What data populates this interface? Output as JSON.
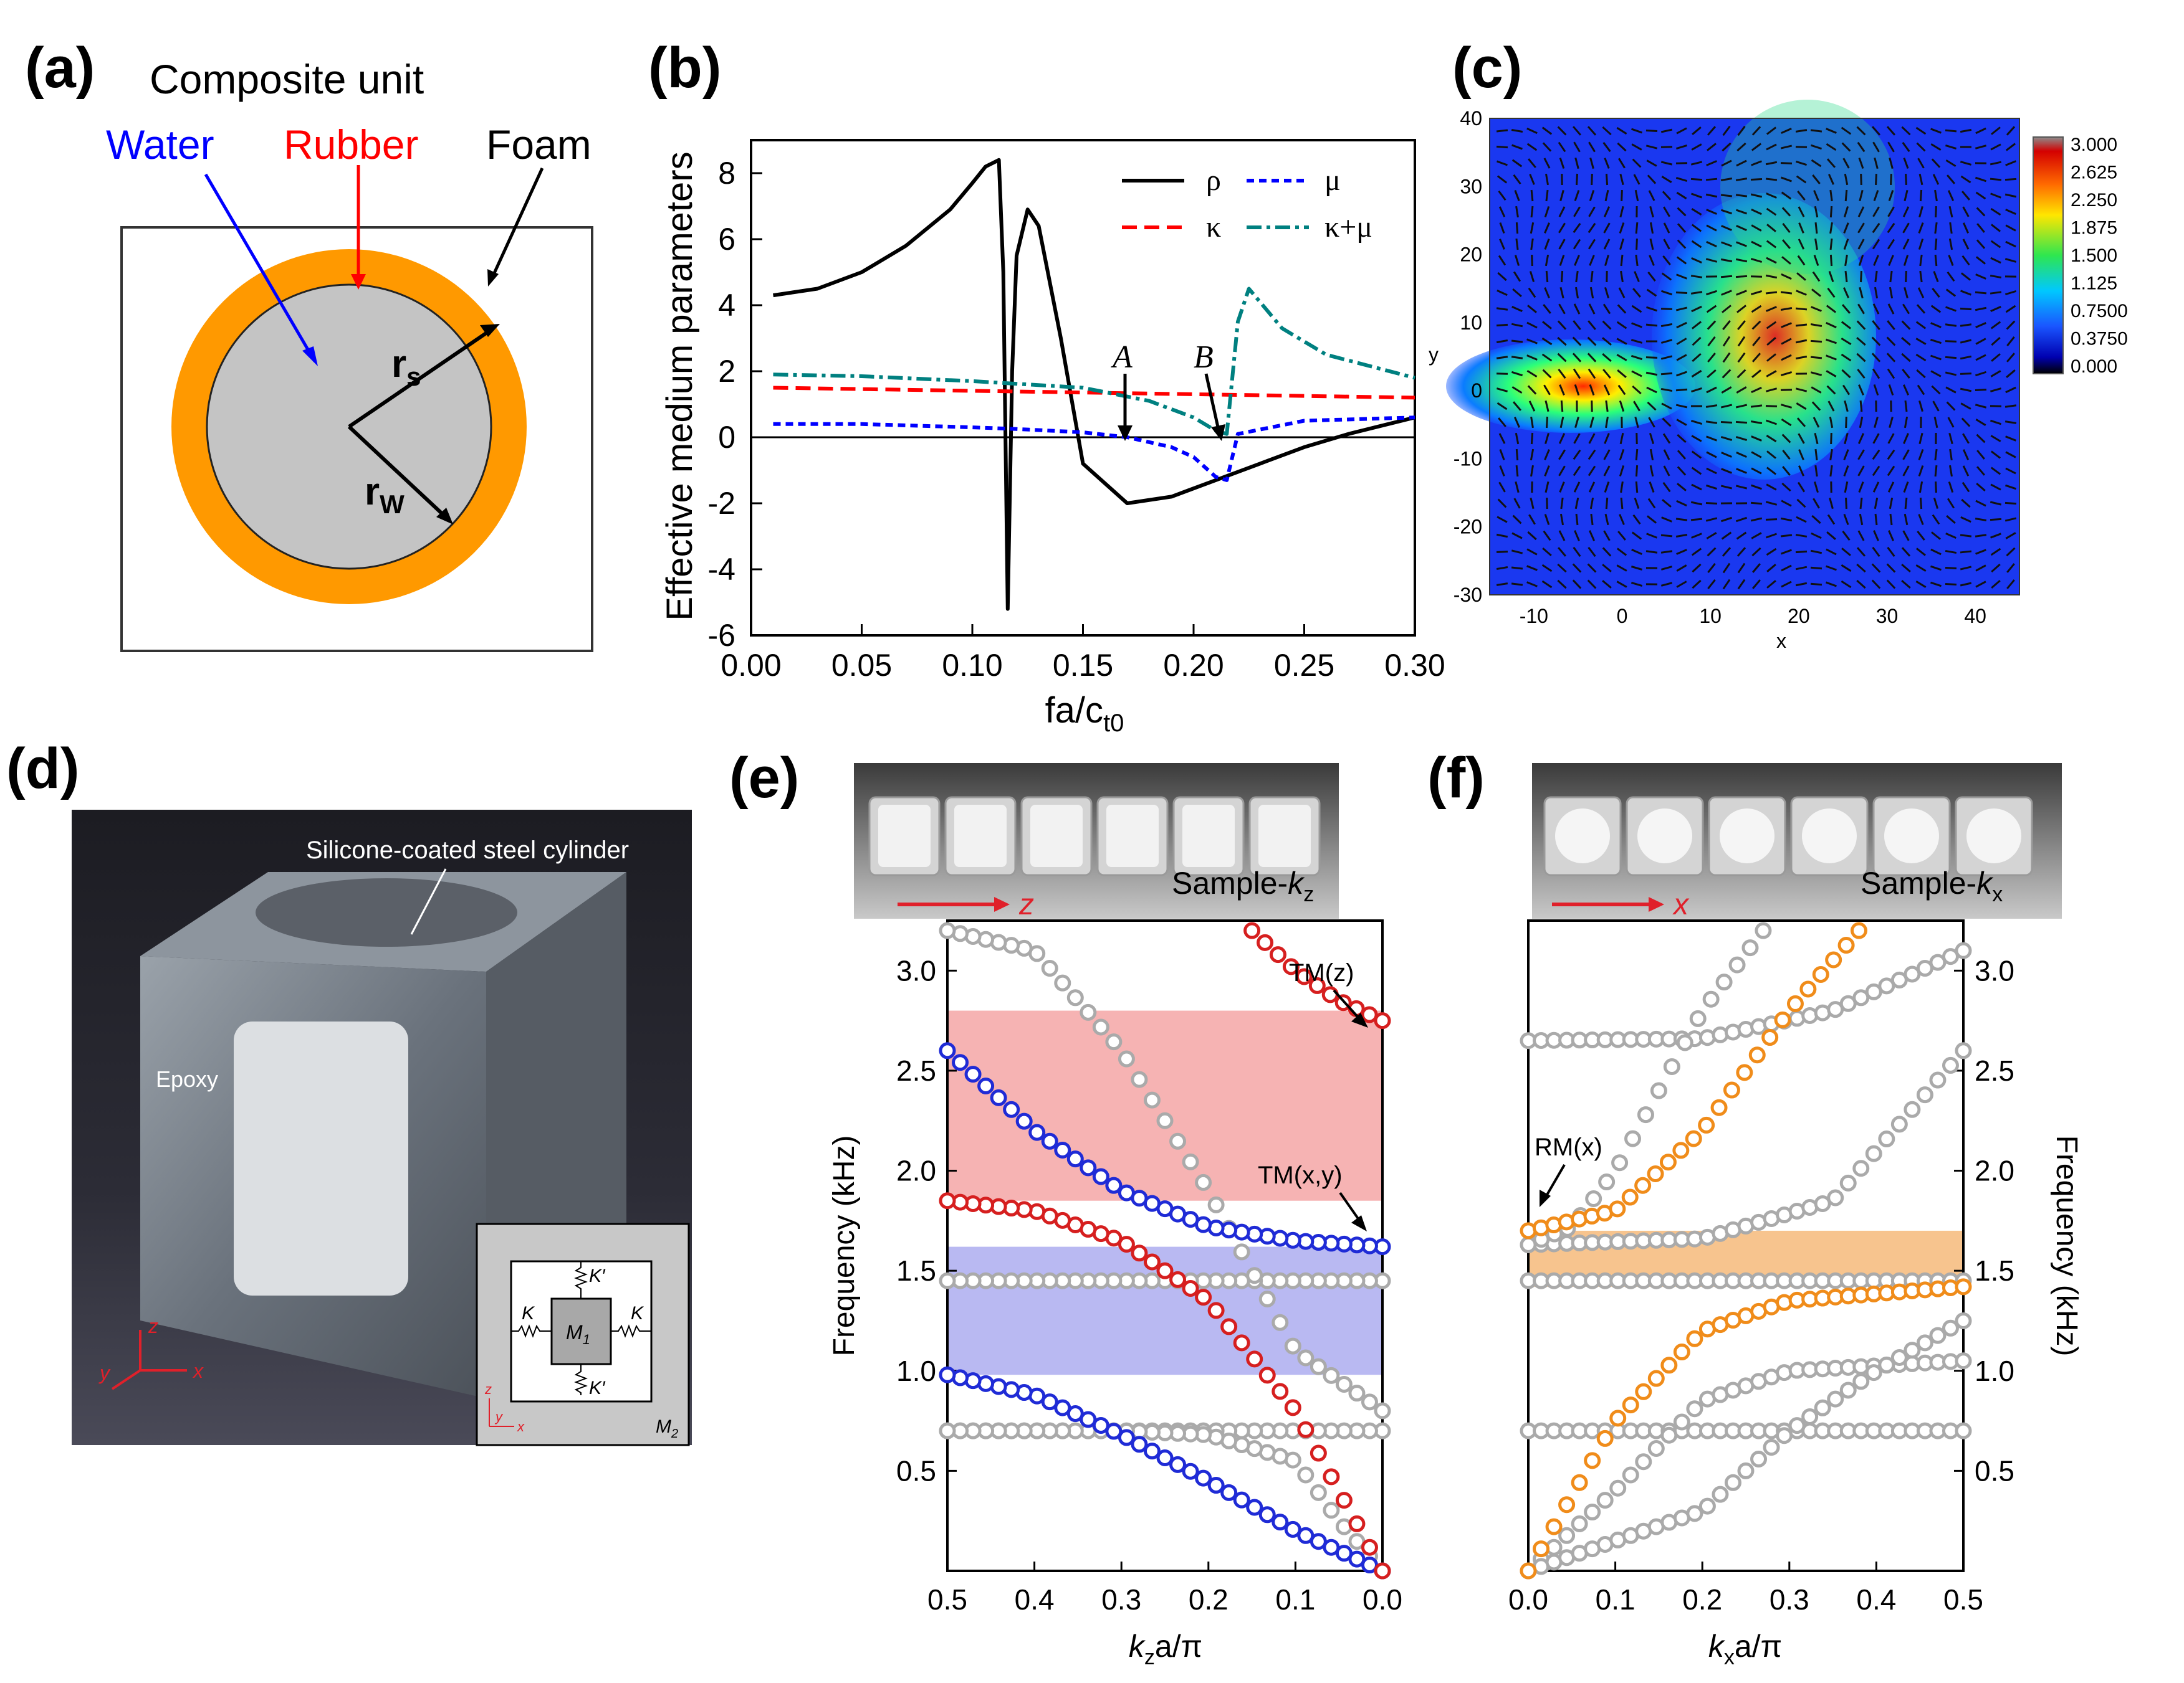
{
  "panel_labels": {
    "a": "(a)",
    "b": "(b)",
    "c": "(c)",
    "d": "(d)",
    "e": "(e)",
    "f": "(f)"
  },
  "panel_a": {
    "title": "Composite unit",
    "label_water": "Water",
    "label_rubber": "Rubber",
    "label_foam": "Foam",
    "label_rs": "r",
    "label_rs_sub": "s",
    "label_rw": "r",
    "label_rw_sub": "W",
    "colors": {
      "water": "#0000ff",
      "rubber": "#ff0000",
      "shell": "#ff9900",
      "core": "#c4c4c4"
    }
  },
  "panel_b": {
    "chart_data": {
      "type": "line",
      "xlabel": "fa/c",
      "xlabel_sub": "t0",
      "ylabel": "Effective medium parameters",
      "xlim": [
        0,
        0.3
      ],
      "ylim": [
        -6,
        9
      ],
      "xticks": [
        "0.00",
        "0.05",
        "0.10",
        "0.15",
        "0.20",
        "0.25",
        "0.30"
      ],
      "yticks": [
        "-6",
        "-4",
        "-2",
        "0",
        "2",
        "4",
        "6",
        "8"
      ],
      "legend": [
        {
          "name": "ρ",
          "style": "solid",
          "color": "#000000"
        },
        {
          "name": "μ",
          "style": "dotted",
          "color": "#0000ff"
        },
        {
          "name": "κ",
          "style": "dashed",
          "color": "#ff0000"
        },
        {
          "name": "κ+μ",
          "style": "dashdot",
          "color": "#008080"
        }
      ],
      "annotations": [
        "A",
        "B"
      ],
      "series": [
        {
          "name": "ρ",
          "x": [
            0.01,
            0.03,
            0.05,
            0.07,
            0.09,
            0.1,
            0.106,
            0.112,
            0.114,
            0.116,
            0.118,
            0.12,
            0.125,
            0.13,
            0.14,
            0.15,
            0.17,
            0.19,
            0.21,
            0.23,
            0.25,
            0.27,
            0.3
          ],
          "y": [
            4.3,
            4.5,
            5.0,
            5.8,
            6.9,
            7.7,
            8.2,
            8.4,
            5.0,
            -5.2,
            2.0,
            5.5,
            6.9,
            6.4,
            3.0,
            -0.8,
            -2.0,
            -1.8,
            -1.3,
            -0.8,
            -0.3,
            0.1,
            0.6
          ]
        },
        {
          "name": "μ",
          "x": [
            0.01,
            0.05,
            0.1,
            0.12,
            0.15,
            0.17,
            0.19,
            0.2,
            0.21,
            0.215,
            0.22,
            0.25,
            0.3
          ],
          "y": [
            0.4,
            0.4,
            0.3,
            0.25,
            0.15,
            0.0,
            -0.3,
            -0.6,
            -1.2,
            -1.3,
            0.1,
            0.5,
            0.6
          ]
        },
        {
          "name": "κ",
          "x": [
            0.01,
            0.3
          ],
          "y": [
            1.5,
            1.2
          ]
        },
        {
          "name": "κ+μ",
          "x": [
            0.01,
            0.05,
            0.1,
            0.15,
            0.18,
            0.2,
            0.21,
            0.215,
            0.22,
            0.225,
            0.24,
            0.26,
            0.3
          ],
          "y": [
            1.9,
            1.85,
            1.7,
            1.5,
            1.1,
            0.6,
            0.2,
            0.1,
            3.5,
            4.5,
            3.3,
            2.5,
            1.8
          ]
        }
      ]
    }
  },
  "panel_c": {
    "xlabel": "x",
    "ylabel": "y",
    "xticks": [
      "-10",
      "0",
      "10",
      "20",
      "30",
      "40"
    ],
    "yticks": [
      "40",
      "30",
      "20",
      "10",
      "0",
      "-10",
      "-20",
      "-30"
    ],
    "colorbar": [
      "3.000",
      "2.625",
      "2.250",
      "1.875",
      "1.500",
      "1.125",
      "0.7500",
      "0.3750",
      "0.000"
    ]
  },
  "panel_d": {
    "label_cylinder": "Silicone-coated steel cylinder",
    "label_epoxy": "Epoxy",
    "axes": {
      "z": "z",
      "y": "y",
      "x": "x"
    },
    "inset": {
      "K": "K",
      "Kp": "K′",
      "M1": "M",
      "M1_sub": "1",
      "M2": "M",
      "M2_sub": "2",
      "z": "z",
      "y": "y",
      "x": "x"
    }
  },
  "panel_e": {
    "photo_label": "Sample-",
    "photo_label_k": "k",
    "photo_label_sub": "z",
    "photo_axis": "z",
    "ylabel": "Frequency (kHz)",
    "xlabel": "k",
    "xlabel_sub": "z",
    "xlabel_rest": "a/π",
    "xticks": [
      "0.5",
      "0.4",
      "0.3",
      "0.2",
      "0.1",
      "0.0"
    ],
    "yticks": [
      "3.0",
      "2.5",
      "2.0",
      "1.5",
      "1.0",
      "0.5"
    ],
    "annot_tmz": "TM(z)",
    "annot_tmxy": "TM(x,y)",
    "bands": [
      {
        "from": 1.85,
        "to": 2.8,
        "color": "#f6b3b3"
      },
      {
        "from": 0.98,
        "to": 1.62,
        "color": "#b9b9f2"
      }
    ],
    "chart_data": {
      "type": "scatter",
      "xlim": [
        0.5,
        0.0
      ],
      "ylim": [
        0,
        3.25
      ],
      "series": [
        {
          "name": "gray-flat-0.70",
          "color": "#aaaaaa",
          "x": [
            0.5,
            0.0
          ],
          "y": [
            0.7,
            0.7
          ]
        },
        {
          "name": "gray-flat-1.45",
          "color": "#aaaaaa",
          "x": [
            0.5,
            0.0
          ],
          "y": [
            1.45,
            1.45
          ]
        },
        {
          "name": "gray-upper",
          "color": "#aaaaaa",
          "x": [
            0.5,
            0.4,
            0.3,
            0.2,
            0.1,
            0.0
          ],
          "y": [
            3.2,
            3.1,
            2.6,
            1.9,
            1.1,
            0.8
          ]
        },
        {
          "name": "gray-lower",
          "color": "#aaaaaa",
          "x": [
            0.5,
            0.3,
            0.2,
            0.1,
            0.05,
            0.0
          ],
          "y": [
            0.7,
            0.7,
            0.68,
            0.55,
            0.25,
            0.0
          ]
        },
        {
          "name": "blue-upper",
          "color": "#1f2bd6",
          "x": [
            0.5,
            0.4,
            0.3,
            0.2,
            0.1,
            0.0
          ],
          "y": [
            2.6,
            2.2,
            1.9,
            1.72,
            1.65,
            1.62
          ]
        },
        {
          "name": "blue-lower",
          "color": "#1f2bd6",
          "x": [
            0.5,
            0.4,
            0.3,
            0.2,
            0.1,
            0.0
          ],
          "y": [
            0.98,
            0.88,
            0.68,
            0.45,
            0.2,
            0.0
          ]
        },
        {
          "name": "red-mid",
          "color": "#d61f1f",
          "x": [
            0.5,
            0.4,
            0.3,
            0.2,
            0.1,
            0.0
          ],
          "y": [
            1.85,
            1.8,
            1.65,
            1.35,
            0.8,
            0.0
          ]
        },
        {
          "name": "red-top",
          "color": "#d61f1f",
          "x": [
            0.15,
            0.1,
            0.05,
            0.0
          ],
          "y": [
            3.2,
            3.0,
            2.85,
            2.75
          ]
        }
      ]
    }
  },
  "panel_f": {
    "photo_label": "Sample-",
    "photo_label_k": "k",
    "photo_label_sub": "x",
    "photo_axis": "x",
    "ylabel": "Frequency (kHz)",
    "xlabel": "k",
    "xlabel_sub": "x",
    "xlabel_rest": "a/π",
    "xticks": [
      "0.0",
      "0.1",
      "0.2",
      "0.3",
      "0.4",
      "0.5"
    ],
    "yticks": [
      "3.0",
      "2.5",
      "2.0",
      "1.5",
      "1.0",
      "0.5"
    ],
    "annot_rmx": "RM(x)",
    "bands": [
      {
        "from": 1.42,
        "to": 1.7,
        "color": "#f7c48e"
      }
    ],
    "chart_data": {
      "type": "scatter",
      "xlim": [
        0,
        0.5
      ],
      "ylim": [
        0,
        3.25
      ],
      "series": [
        {
          "name": "gray-flat-0.70",
          "color": "#aaaaaa",
          "x": [
            0,
            0.5
          ],
          "y": [
            0.7,
            0.7
          ]
        },
        {
          "name": "gray-flat-1.45",
          "color": "#aaaaaa",
          "x": [
            0,
            0.5
          ],
          "y": [
            1.45,
            1.45
          ]
        },
        {
          "name": "gray-2.65",
          "color": "#aaaaaa",
          "x": [
            0,
            0.2,
            0.35,
            0.5
          ],
          "y": [
            2.65,
            2.66,
            2.8,
            3.1
          ]
        },
        {
          "name": "gray-1.63",
          "color": "#aaaaaa",
          "x": [
            0,
            0.2,
            0.35,
            0.5
          ],
          "y": [
            1.63,
            1.66,
            1.85,
            2.6
          ]
        },
        {
          "name": "gray-steep",
          "color": "#aaaaaa",
          "x": [
            0,
            0.05,
            0.1,
            0.15,
            0.2,
            0.27
          ],
          "y": [
            1.63,
            1.72,
            2.0,
            2.4,
            2.8,
            3.2
          ]
        },
        {
          "name": "gray-1.0",
          "color": "#aaaaaa",
          "x": [
            0,
            0.1,
            0.2,
            0.3,
            0.5
          ],
          "y": [
            0.0,
            0.4,
            0.85,
            1.0,
            1.05
          ]
        },
        {
          "name": "gray-low",
          "color": "#aaaaaa",
          "x": [
            0,
            0.2,
            0.3,
            0.4,
            0.5
          ],
          "y": [
            0.0,
            0.3,
            0.7,
            1.0,
            1.25
          ]
        },
        {
          "name": "orange-low",
          "color": "#f08c1a",
          "x": [
            0,
            0.1,
            0.2,
            0.3,
            0.5
          ],
          "y": [
            0.0,
            0.75,
            1.2,
            1.35,
            1.42
          ]
        },
        {
          "name": "orange-rm",
          "color": "#f08c1a",
          "x": [
            0,
            0.1,
            0.2,
            0.3,
            0.38
          ],
          "y": [
            1.7,
            1.8,
            2.2,
            2.8,
            3.2
          ]
        }
      ]
    }
  }
}
